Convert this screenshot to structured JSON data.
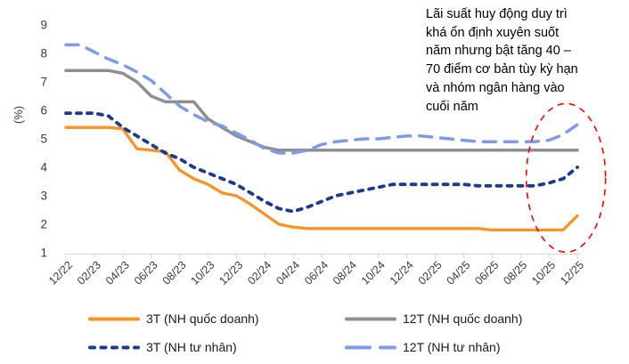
{
  "y_axis_label": "(%)",
  "annotation": "Lãi suất huy động duy trì\nkhá ổn định xuyên suốt\nnăm nhưng bật tăng 40 –\n70 điểm cơ bản tùy kỳ hạn\nvà nhóm ngân hàng vào\ncuối năm",
  "chart_data": {
    "type": "line",
    "title": "",
    "ylabel": "(%)",
    "ylim": [
      1,
      9
    ],
    "y_ticks": [
      1,
      2,
      3,
      4,
      5,
      6,
      7,
      8,
      9
    ],
    "x_tick_labels": [
      "12/22",
      "02/23",
      "04/23",
      "06/23",
      "08/23",
      "10/23",
      "12/23",
      "02/24",
      "04/24",
      "06/24",
      "08/24",
      "10/24",
      "12/24",
      "02/25",
      "04/25",
      "06/25",
      "08/25",
      "10/25",
      "12/25"
    ],
    "x_interval": "monthly",
    "grid": false,
    "legend_position": "bottom",
    "series": [
      {
        "name": "3T (NH quốc doanh)",
        "slug": "3t-nh-quoc-doanh",
        "color": "#F79428",
        "style": "solid",
        "values": [
          5.4,
          5.4,
          5.4,
          5.4,
          5.35,
          4.65,
          4.6,
          4.55,
          3.9,
          3.6,
          3.4,
          3.1,
          3.0,
          2.7,
          2.35,
          2.0,
          1.9,
          1.85,
          1.85,
          1.85,
          1.85,
          1.85,
          1.85,
          1.85,
          1.85,
          1.85,
          1.85,
          1.85,
          1.85,
          1.85,
          1.8,
          1.8,
          1.8,
          1.8,
          1.8,
          1.8,
          2.3
        ]
      },
      {
        "name": "12T (NH quốc doanh)",
        "slug": "12t-nh-quoc-doanh",
        "color": "#8F8F8F",
        "style": "solid",
        "values": [
          7.4,
          7.4,
          7.4,
          7.4,
          7.3,
          7.0,
          6.5,
          6.3,
          6.3,
          6.3,
          5.7,
          5.4,
          5.1,
          4.9,
          4.7,
          4.6,
          4.6,
          4.6,
          4.6,
          4.6,
          4.6,
          4.6,
          4.6,
          4.6,
          4.6,
          4.6,
          4.6,
          4.6,
          4.6,
          4.6,
          4.6,
          4.6,
          4.6,
          4.6,
          4.6,
          4.6,
          4.6
        ]
      },
      {
        "name": "3T (NH tư nhân)",
        "slug": "3t-nh-tu-nhan",
        "color": "#1E3A8F",
        "style": "dashed",
        "values": [
          5.9,
          5.9,
          5.9,
          5.8,
          5.4,
          5.1,
          4.8,
          4.5,
          4.3,
          4.0,
          3.8,
          3.6,
          3.4,
          3.1,
          2.8,
          2.55,
          2.45,
          2.6,
          2.8,
          3.0,
          3.1,
          3.2,
          3.3,
          3.4,
          3.4,
          3.4,
          3.4,
          3.4,
          3.4,
          3.35,
          3.35,
          3.35,
          3.35,
          3.35,
          3.45,
          3.6,
          4.0
        ]
      },
      {
        "name": "12T (NH tư nhân)",
        "slug": "12t-nh-tu-nhan",
        "color": "#7D9BE8",
        "style": "long-dash",
        "values": [
          8.3,
          8.3,
          8.05,
          7.8,
          7.6,
          7.35,
          7.05,
          6.6,
          6.15,
          5.85,
          5.6,
          5.45,
          5.2,
          4.95,
          4.65,
          4.5,
          4.5,
          4.6,
          4.8,
          4.9,
          4.95,
          5.0,
          5.0,
          5.05,
          5.1,
          5.1,
          5.05,
          5.0,
          4.95,
          4.9,
          4.9,
          4.9,
          4.9,
          4.9,
          4.95,
          5.15,
          5.5
        ]
      }
    ],
    "highlight": {
      "shape": "ellipse",
      "color": "#FF0000",
      "style": "dashed",
      "center_month_index": 35.2,
      "center_value": 3.63,
      "radius_months": 2.79,
      "radius_value": 2.61
    }
  },
  "legend": {
    "rows": 2,
    "columns": 2
  }
}
